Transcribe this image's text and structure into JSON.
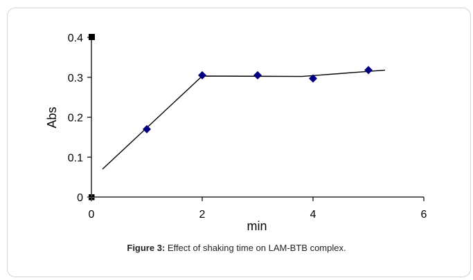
{
  "chart_data": {
    "type": "scatter",
    "xlabel": "min",
    "ylabel": "Abs",
    "xlim": [
      0,
      6
    ],
    "ylim": [
      0,
      0.4
    ],
    "x_ticks": [
      "0",
      "2",
      "4",
      "6"
    ],
    "y_ticks": [
      "0",
      "0.1",
      "0.2",
      "0.3",
      "0.4"
    ],
    "grid": false,
    "points": [
      {
        "x": 1,
        "y": 0.17
      },
      {
        "x": 2,
        "y": 0.305
      },
      {
        "x": 3,
        "y": 0.305
      },
      {
        "x": 4,
        "y": 0.297
      },
      {
        "x": 5,
        "y": 0.318
      }
    ],
    "trend_line": [
      {
        "x": 0.2,
        "y": 0.07
      },
      {
        "x": 2,
        "y": 0.303
      },
      {
        "x": 3.8,
        "y": 0.302
      },
      {
        "x": 5.3,
        "y": 0.318
      }
    ],
    "marker_color": "#000080",
    "line_color": "#000000"
  },
  "caption": {
    "label": "Figure 3:",
    "text": " Effect of shaking time on LAM-BTB complex."
  }
}
